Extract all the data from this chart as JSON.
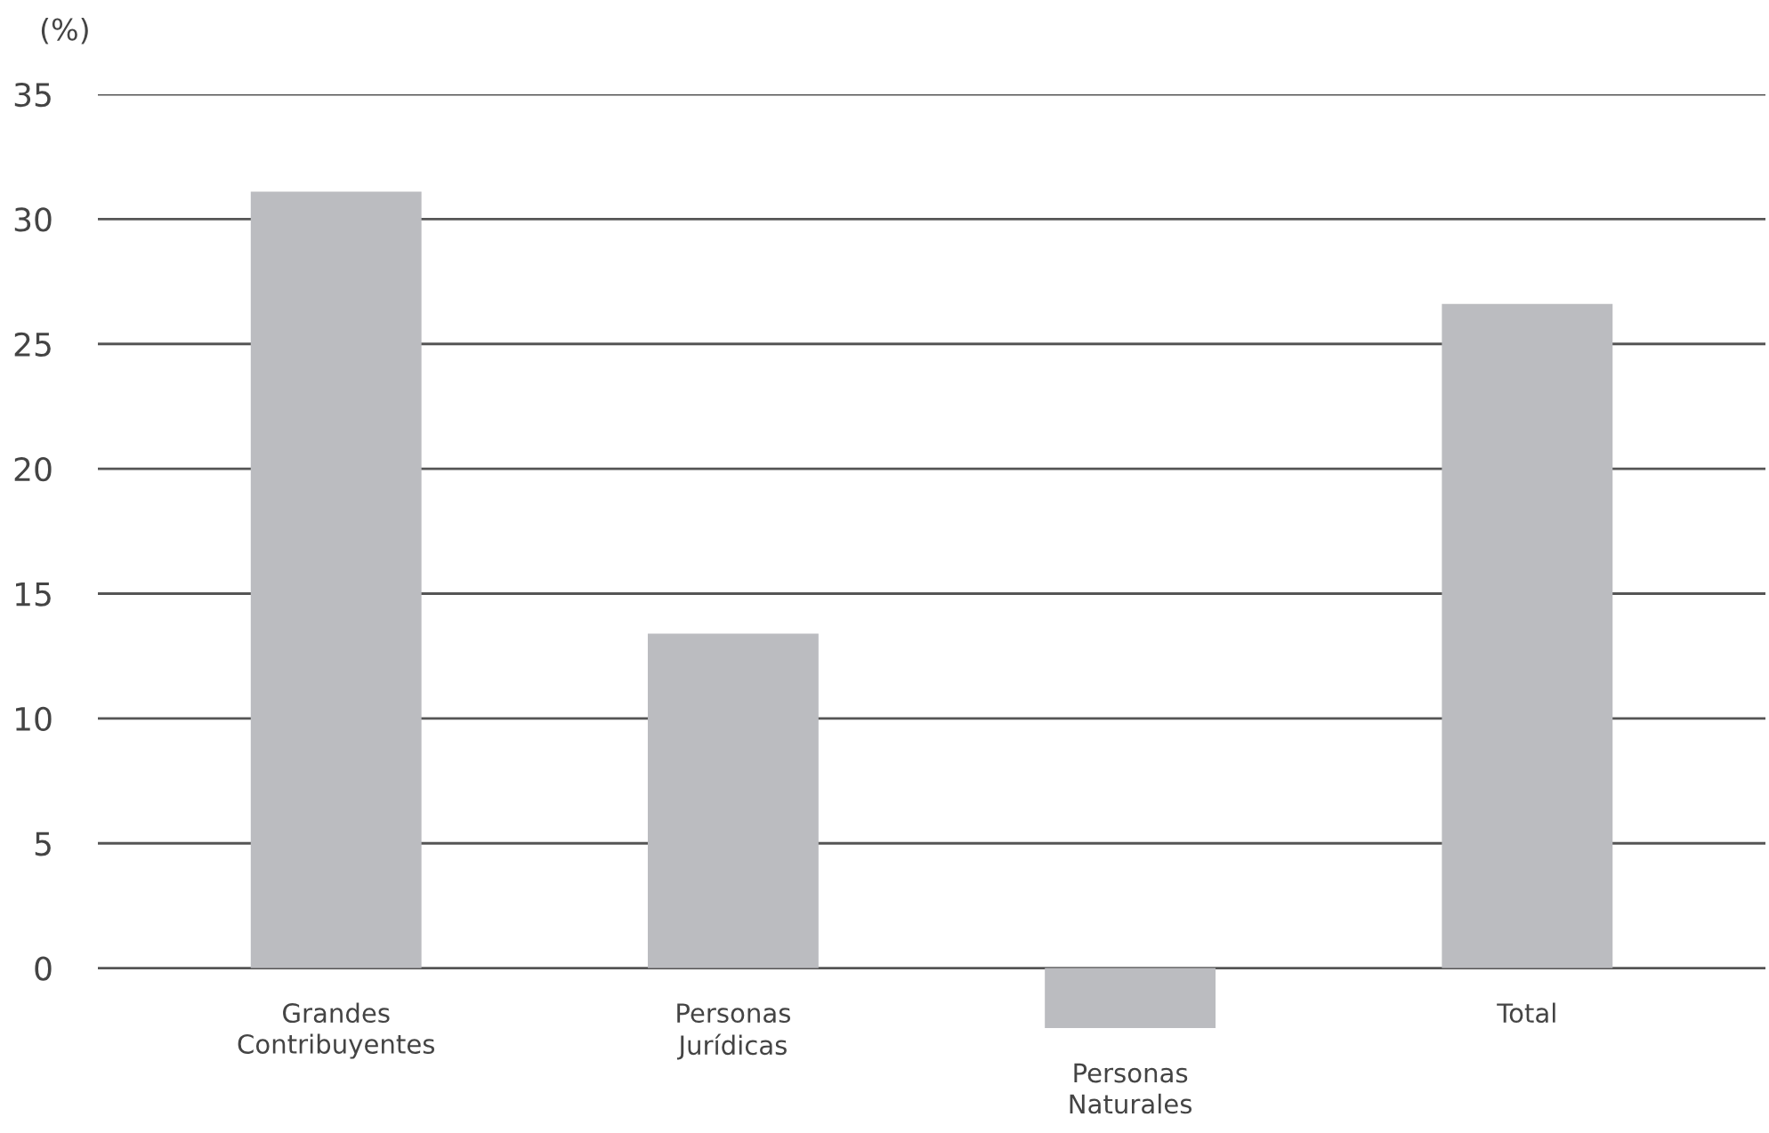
{
  "chart_data": {
    "type": "bar",
    "ylabel": "(%)",
    "categories": [
      "Grandes\nContribuyentes",
      "Personas\nJurídicas",
      "Personas\nNaturales",
      "Total"
    ],
    "values": [
      31.1,
      13.4,
      -2.4,
      26.6
    ],
    "color": "#bbbcc0",
    "ylim": [
      -2.4,
      35
    ],
    "yticks": [
      0,
      5,
      10,
      15,
      20,
      25,
      30,
      35
    ],
    "grid": "y"
  }
}
